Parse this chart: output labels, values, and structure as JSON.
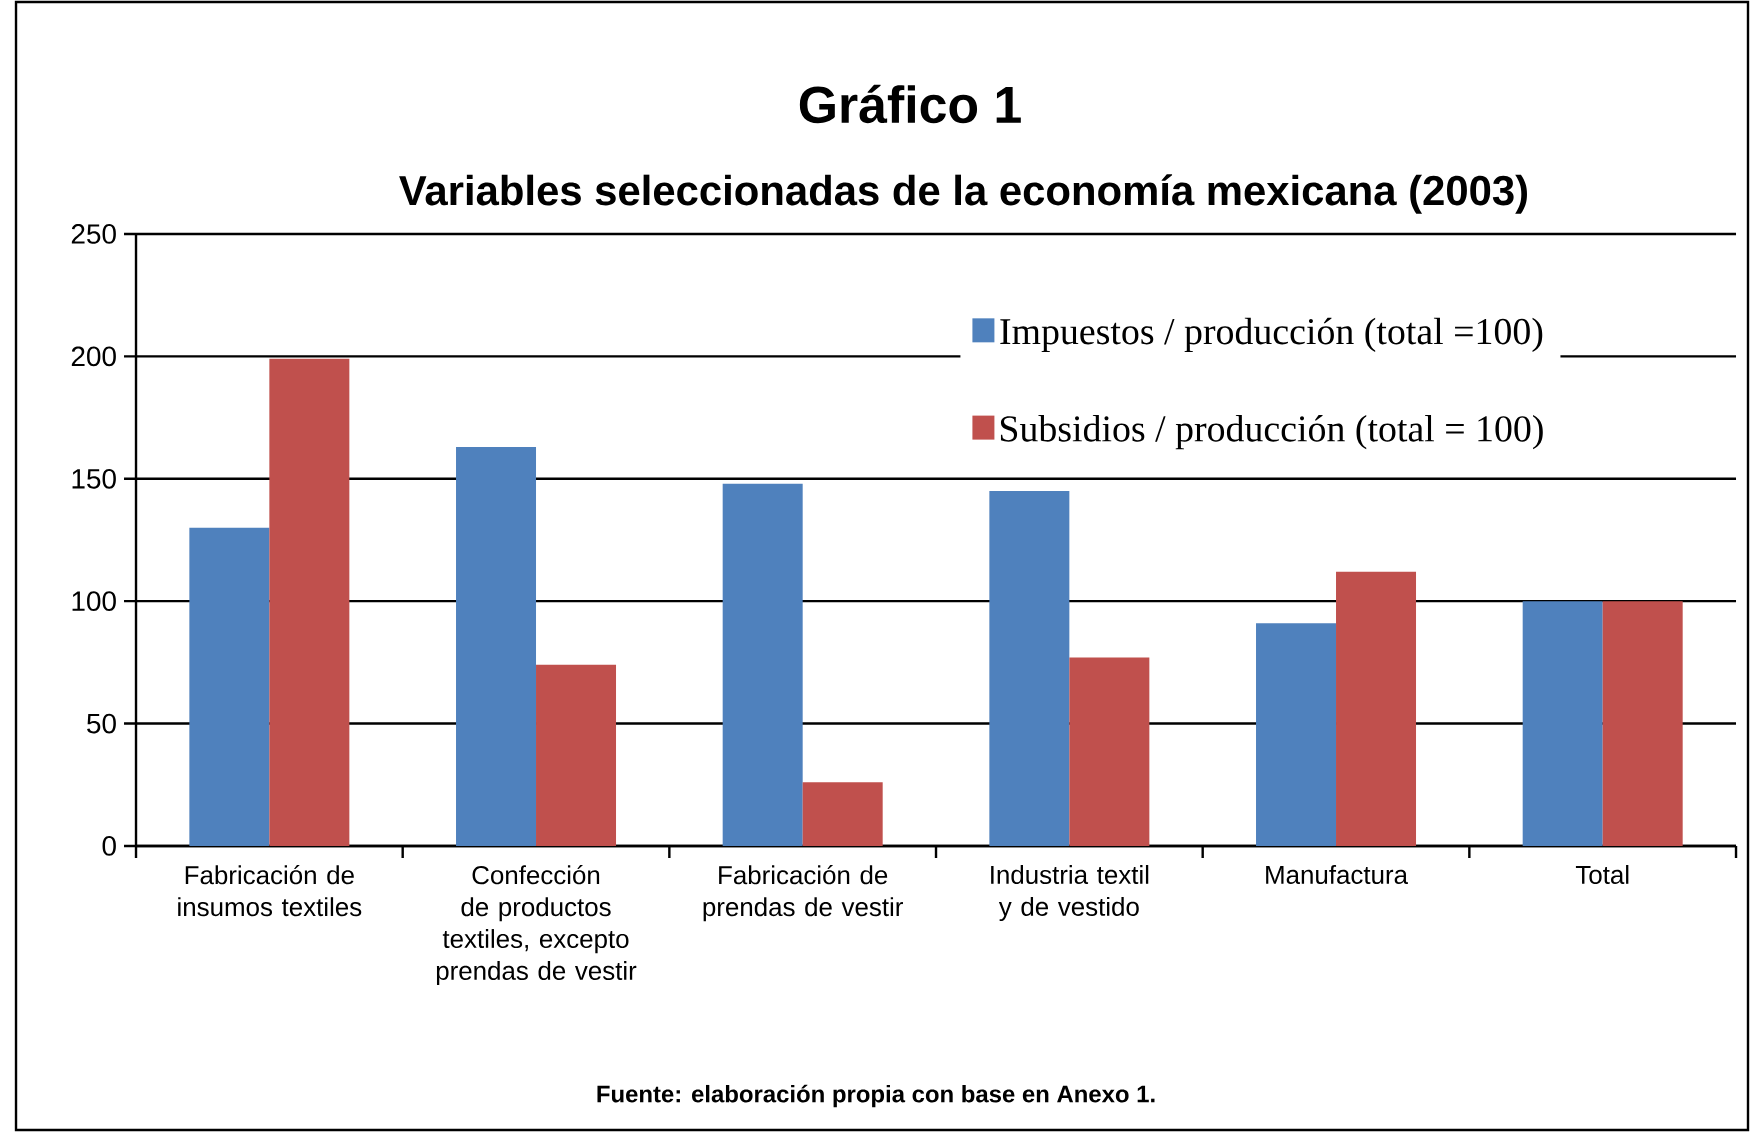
{
  "chart_data": {
    "type": "bar",
    "title": "Gráfico 1",
    "subtitle": "Variables seleccionadas de la economía mexicana (2003)",
    "categories": [
      "Fabricación de insumos textiles",
      "Confección de productos textiles, excepto prendas de vestir",
      "Fabricación de prendas de vestir",
      "Industria textil y de vestido",
      "Manufactura",
      "Total"
    ],
    "series": [
      {
        "name": "Impuestos / producción (total =100)",
        "color": "#4f81bd",
        "values": [
          130,
          163,
          148,
          145,
          91,
          100
        ]
      },
      {
        "name": "Subsidios / producción (total = 100)",
        "color": "#c0504d",
        "values": [
          199,
          74,
          26,
          77,
          112,
          100
        ]
      }
    ],
    "ylim": [
      0,
      250
    ],
    "yticks": [
      0,
      50,
      100,
      150,
      200,
      250
    ],
    "grid": "y",
    "legend": "top right",
    "annotations": [
      "Fuente: elaboración propia con base en Anexo 1."
    ]
  }
}
